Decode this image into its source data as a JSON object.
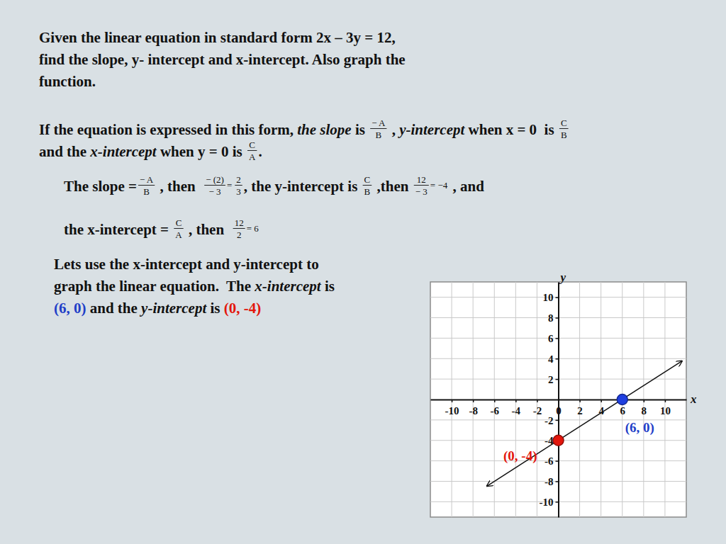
{
  "slide": {
    "lines": [
      {
        "segments": [
          {
            "text": "Given the linear equation in standard form 2x – 3y = 12,"
          }
        ]
      },
      {
        "segments": [
          {
            "text": "find the slope, y- intercept and x-intercept. Also graph the"
          }
        ]
      },
      {
        "segments": [
          {
            "text": "function."
          }
        ]
      },
      {
        "segments": [
          {
            "text": "If the equation is expressed in this form, "
          },
          {
            "text": "the slope",
            "style": "italic"
          },
          {
            "text": " is "
          },
          {
            "num": "− A",
            "den": "B"
          },
          {
            "text": " , "
          },
          {
            "text": "y-intercept",
            "style": "italic"
          },
          {
            "text": " when x = 0  is "
          },
          {
            "num": "C",
            "den": "B"
          }
        ]
      },
      {
        "segments": [
          {
            "text": "and the "
          },
          {
            "text": "x-intercept",
            "style": "italic"
          },
          {
            "text": " when y = 0 is "
          },
          {
            "num": "C",
            "den": "A"
          },
          {
            "text": "."
          }
        ]
      },
      {
        "segments": [
          {
            "text": "The slope ="
          },
          {
            "num": "− A",
            "den": "B"
          },
          {
            "text": " , then  "
          },
          {
            "num": "− (2)",
            "den": "− 3"
          },
          {
            "small": "="
          },
          {
            "num": "2",
            "den": "3"
          },
          {
            "text": ", the y-intercept is "
          },
          {
            "num": "C",
            "den": "B"
          },
          {
            "text": " ,then "
          },
          {
            "num": "12",
            "den": "− 3"
          },
          {
            "small": "= −4"
          },
          {
            "text": " , and"
          }
        ]
      },
      {
        "segments": [
          {
            "text": "the x-intercept = "
          },
          {
            "num": "C",
            "den": "A"
          },
          {
            "text": " , then  "
          },
          {
            "num": "12",
            "den": "2"
          },
          {
            "small": "= 6"
          }
        ]
      },
      {
        "segments": [
          {
            "text": "Lets use the x-intercept and y-intercept to"
          }
        ]
      },
      {
        "segments": [
          {
            "text": "graph the linear equation.  The "
          },
          {
            "text": "x-intercept",
            "style": "italic"
          },
          {
            "text": " is"
          }
        ]
      },
      {
        "segments": [
          {
            "text": "(6, 0)",
            "color": "#1f3fc8"
          },
          {
            "text": " and the "
          },
          {
            "text": "y-intercept",
            "style": "italic"
          },
          {
            "text": " is "
          },
          {
            "text": "(0, -4)",
            "color": "#e3160c"
          }
        ]
      }
    ]
  },
  "chart_data": {
    "type": "line",
    "x_label": "x",
    "y_label": "y",
    "xlim": [
      -12,
      12
    ],
    "ylim": [
      -11.5,
      11.5
    ],
    "xticks": [
      -10,
      -8,
      -6,
      -4,
      -2,
      0,
      2,
      4,
      6,
      8,
      10
    ],
    "yticks": [
      -10,
      -8,
      -6,
      -4,
      -2,
      2,
      4,
      6,
      8,
      10
    ],
    "grid": true,
    "series": [
      {
        "type": "line",
        "x": [
          -6.7,
          11.6
        ],
        "values": [
          -8.47,
          3.77
        ],
        "color": "#111111",
        "marker": "arrow"
      },
      {
        "type": "scatter",
        "x": [
          6
        ],
        "values": [
          0
        ],
        "color": "#1f3fe0",
        "marker": "circle"
      },
      {
        "type": "scatter",
        "x": [
          0
        ],
        "values": [
          -4
        ],
        "color": "#e3160c",
        "marker": "circle"
      }
    ],
    "annotations": [
      {
        "text": "(6, 0)",
        "x": 6,
        "y": 0,
        "color": "#1f3fc8"
      },
      {
        "text": "(0, -4)",
        "x": 0,
        "y": -4,
        "color": "#e3160c"
      }
    ]
  }
}
